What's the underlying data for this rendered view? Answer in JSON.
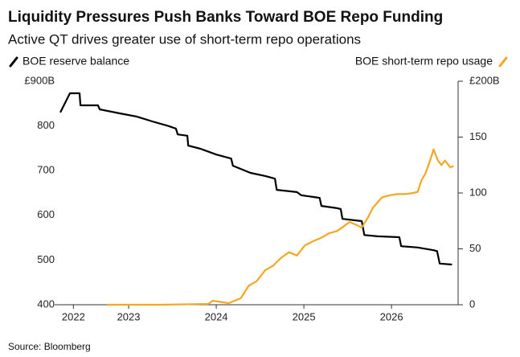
{
  "chart_data": {
    "type": "line",
    "title": "Liquidity Pressures Push Banks Toward BOE Repo Funding",
    "subtitle": "Active QT drives greater use of short-term repo operations",
    "source": "Source: Bloomberg",
    "xlim": [
      2022.72,
      2027.26
    ],
    "xticks": [
      {
        "value": 2022.87,
        "label": "2022"
      },
      {
        "value": 2023.5,
        "label": "2023"
      },
      {
        "value": 2024.5,
        "label": "2024"
      },
      {
        "value": 2025.5,
        "label": "2025"
      },
      {
        "value": 2026.5,
        "label": "2026"
      }
    ],
    "ylim": [
      400,
      900
    ],
    "yticks": [
      400,
      500,
      600,
      700,
      800,
      {
        "value": 900,
        "label": "£900B"
      }
    ],
    "y2lim": [
      0,
      200
    ],
    "y2ticks": [
      0,
      50,
      100,
      150,
      {
        "value": 200,
        "label": "£200B"
      }
    ],
    "grid": false,
    "series": [
      {
        "name": "BOE reserve balance",
        "color": "#000000",
        "axis": "y",
        "x": [
          2022.72,
          2022.83,
          2022.94,
          2022.95,
          2023.15,
          2023.17,
          2023.4,
          2023.59,
          2023.77,
          2023.95,
          2024.04,
          2024.06,
          2024.17,
          2024.18,
          2024.32,
          2024.5,
          2024.67,
          2024.69,
          2024.89,
          2025.06,
          2025.17,
          2025.19,
          2025.42,
          2025.47,
          2025.61,
          2025.68,
          2025.7,
          2025.88,
          2025.92,
          2025.94,
          2026.16,
          2026.19,
          2026.34,
          2026.59,
          2026.61,
          2026.8,
          2026.98,
          2027.02,
          2027.05,
          2027.19
        ],
        "values": [
          830,
          873,
          873,
          846,
          846,
          837,
          828,
          821,
          810,
          800,
          794,
          781,
          778,
          756,
          749,
          736,
          727,
          711,
          695,
          688,
          682,
          657,
          652,
          645,
          641,
          639,
          621,
          616,
          614,
          592,
          587,
          556,
          553,
          551,
          531,
          528,
          522,
          520,
          492,
          490
        ]
      },
      {
        "name": "BOE short-term repo usage",
        "color": "#f5a623",
        "axis": "y2",
        "x": [
          2023.25,
          2023.86,
          2024.41,
          2024.46,
          2024.64,
          2024.78,
          2024.87,
          2024.96,
          2025.06,
          2025.15,
          2025.24,
          2025.33,
          2025.42,
          2025.51,
          2025.61,
          2025.7,
          2025.79,
          2025.88,
          2025.97,
          2026.02,
          2026.11,
          2026.16,
          2026.23,
          2026.29,
          2026.39,
          2026.48,
          2026.57,
          2026.66,
          2026.75,
          2026.8,
          2026.84,
          2026.89,
          2026.94,
          2026.98,
          2027.03,
          2027.07,
          2027.11,
          2027.17,
          2027.21
        ],
        "values": [
          0,
          0,
          0.7,
          3.6,
          1.4,
          5.8,
          17,
          21,
          31,
          35,
          42,
          47,
          44,
          53,
          57,
          60,
          64,
          66,
          71,
          74,
          71,
          69,
          78,
          87,
          96,
          98,
          99,
          99,
          100,
          101,
          111,
          118,
          129,
          139,
          129,
          125,
          129,
          123,
          124
        ]
      }
    ]
  }
}
